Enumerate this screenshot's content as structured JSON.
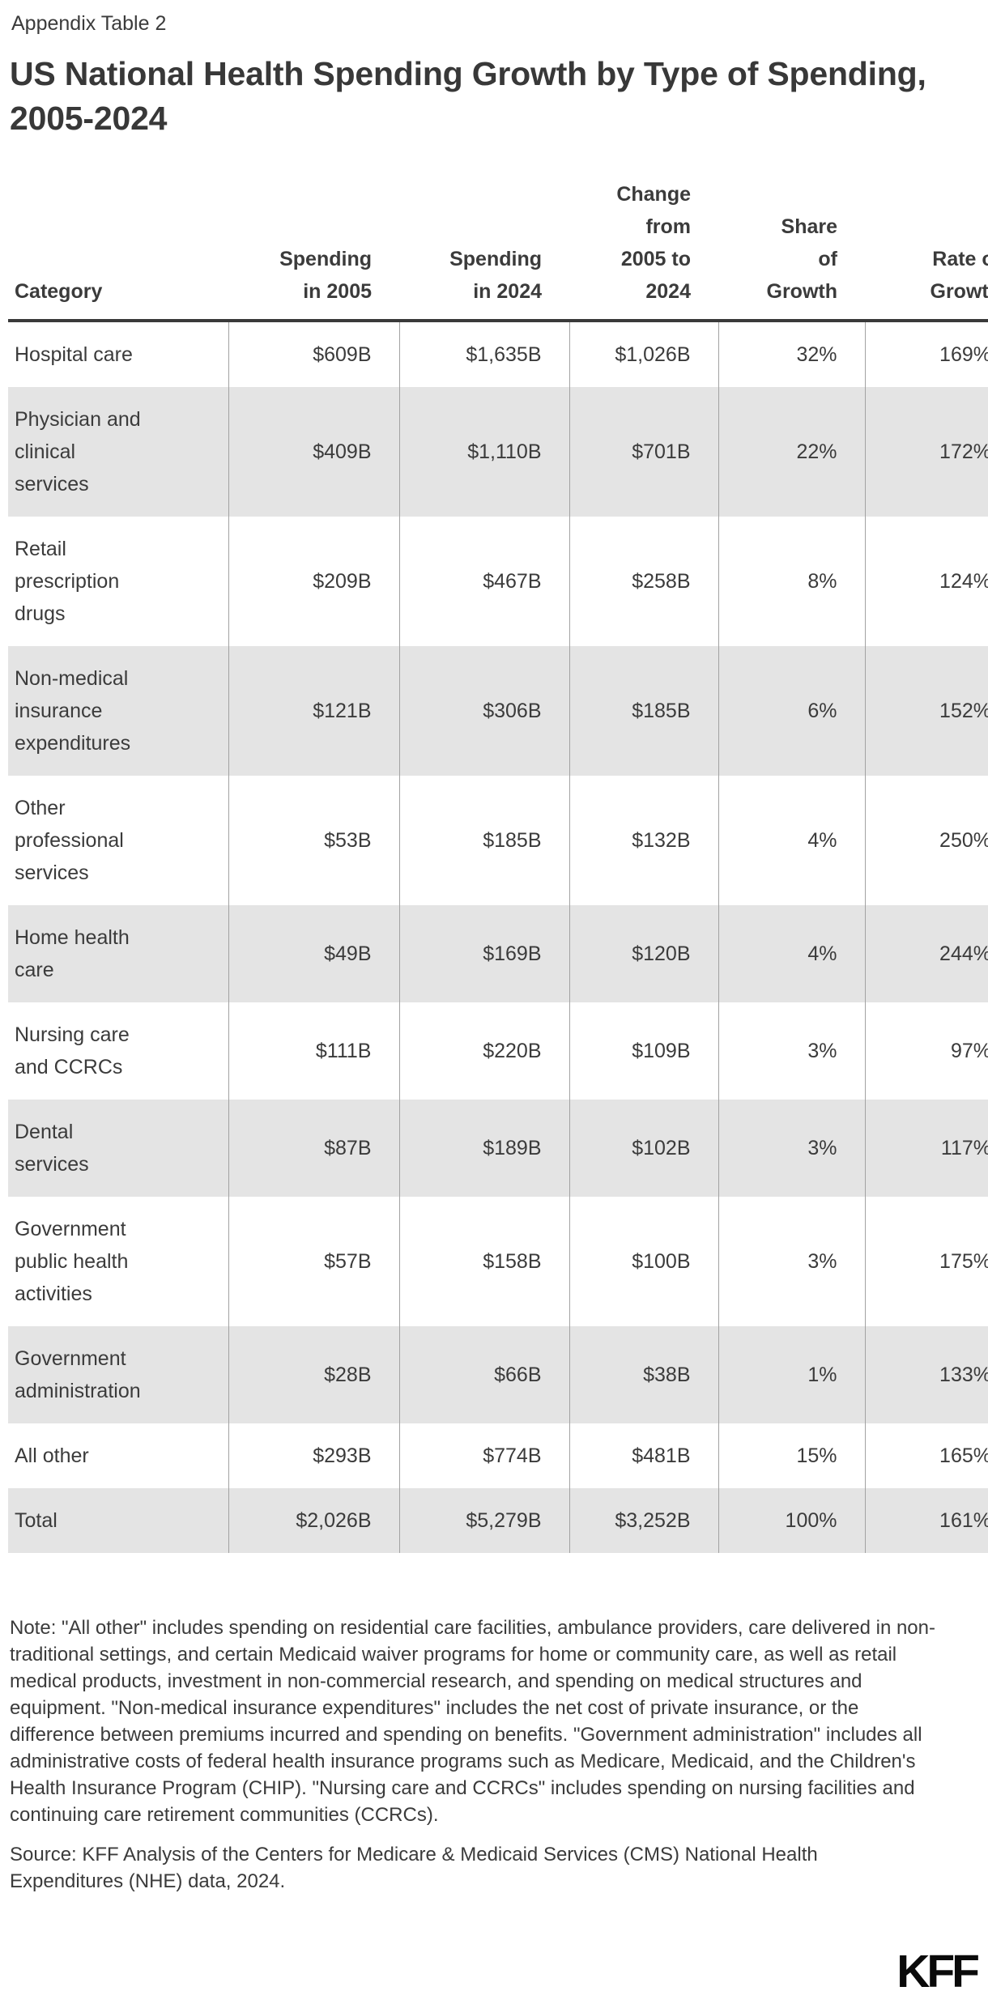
{
  "page": {
    "eyebrow": "Appendix Table 2",
    "title": "US National Health Spending Growth by Type of Spending, 2005-2024",
    "logo": "KFF"
  },
  "table": {
    "columns": [
      {
        "key": "category",
        "label": "Category",
        "align": "left"
      },
      {
        "key": "spending-2005",
        "label": "Spending\nin 2005",
        "align": "right"
      },
      {
        "key": "spending-2024",
        "label": "Spending\nin 2024",
        "align": "right"
      },
      {
        "key": "change",
        "label": "Change\nfrom\n2005 to\n2024",
        "align": "right"
      },
      {
        "key": "share-of-growth",
        "label": "Share\nof\nGrowth",
        "align": "right"
      },
      {
        "key": "rate-of-growth",
        "label": "Rate of\nGrowth",
        "align": "right"
      }
    ],
    "rows": [
      {
        "category": "Hospital care",
        "values": [
          "$609B",
          "$1,635B",
          "$1,026B",
          "32%",
          "169%"
        ]
      },
      {
        "category": "Physician and\nclinical\nservices",
        "values": [
          "$409B",
          "$1,110B",
          "$701B",
          "22%",
          "172%"
        ]
      },
      {
        "category": "Retail\nprescription\ndrugs",
        "values": [
          "$209B",
          "$467B",
          "$258B",
          "8%",
          "124%"
        ]
      },
      {
        "category": "Non-medical\ninsurance\nexpenditures",
        "values": [
          "$121B",
          "$306B",
          "$185B",
          "6%",
          "152%"
        ]
      },
      {
        "category": "Other\nprofessional\nservices",
        "values": [
          "$53B",
          "$185B",
          "$132B",
          "4%",
          "250%"
        ]
      },
      {
        "category": "Home health\ncare",
        "values": [
          "$49B",
          "$169B",
          "$120B",
          "4%",
          "244%"
        ]
      },
      {
        "category": "Nursing care\nand CCRCs",
        "values": [
          "$111B",
          "$220B",
          "$109B",
          "3%",
          "97%"
        ]
      },
      {
        "category": "Dental\nservices",
        "values": [
          "$87B",
          "$189B",
          "$102B",
          "3%",
          "117%"
        ]
      },
      {
        "category": "Government\npublic health\nactivities",
        "values": [
          "$57B",
          "$158B",
          "$100B",
          "3%",
          "175%"
        ]
      },
      {
        "category": "Government\nadministration",
        "values": [
          "$28B",
          "$66B",
          "$38B",
          "1%",
          "133%"
        ]
      },
      {
        "category": "All other",
        "values": [
          "$293B",
          "$774B",
          "$481B",
          "15%",
          "165%"
        ]
      },
      {
        "category": "Total",
        "values": [
          "$2,026B",
          "$5,279B",
          "$3,252B",
          "100%",
          "161%"
        ]
      }
    ]
  },
  "note": {
    "text": "Note: \"All other\" includes spending on residential care facilities, ambulance providers, care delivered in non-traditional settings, and certain Medicaid waiver programs for home or community care, as well as retail medical products, investment in non-commercial research, and spending on medical structures and equipment. \"Non-medical insurance expenditures\" includes the net cost of private insurance, or the difference between premiums incurred and spending on benefits. \"Government administration\" includes all administrative costs of federal health insurance programs such as Medicare, Medicaid, and the Children's Health Insurance Program (CHIP). \"Nursing care and CCRCs\" includes spending on nursing facilities and continuing care retirement communities (CCRCs)."
  },
  "source": {
    "text": "Source: KFF Analysis of the Centers for Medicare & Medicaid Services (CMS) National Health Expenditures (NHE) data, 2024."
  },
  "colors": {
    "text": "#3b3b3b",
    "row_stripe": "#e4e4e4",
    "header_rule": "#3a3a3a",
    "column_divider": "#a2a2a2",
    "logo": "#0a0a0a"
  },
  "chart_data": {
    "type": "table",
    "title": "US National Health Spending Growth by Type of Spending, 2005-2024",
    "columns": [
      "Category",
      "Spending in 2005",
      "Spending in 2024",
      "Change from 2005 to 2024",
      "Share of Growth",
      "Rate of Growth"
    ],
    "units": {
      "spending_columns": "billions USD ($B)",
      "share_of_growth": "%",
      "rate_of_growth": "%"
    },
    "rows": [
      [
        "Hospital care",
        609,
        1635,
        1026,
        32,
        169
      ],
      [
        "Physician and clinical services",
        409,
        1110,
        701,
        22,
        172
      ],
      [
        "Retail prescription drugs",
        209,
        467,
        258,
        8,
        124
      ],
      [
        "Non-medical insurance expenditures",
        121,
        306,
        185,
        6,
        152
      ],
      [
        "Other professional services",
        53,
        185,
        132,
        4,
        250
      ],
      [
        "Home health care",
        49,
        169,
        120,
        4,
        244
      ],
      [
        "Nursing care and CCRCs",
        111,
        220,
        109,
        3,
        97
      ],
      [
        "Dental services",
        87,
        189,
        102,
        3,
        117
      ],
      [
        "Government public health activities",
        57,
        158,
        100,
        3,
        175
      ],
      [
        "Government administration",
        28,
        66,
        38,
        1,
        133
      ],
      [
        "All other",
        293,
        774,
        481,
        15,
        165
      ],
      [
        "Total",
        2026,
        5279,
        3252,
        100,
        161
      ]
    ]
  }
}
